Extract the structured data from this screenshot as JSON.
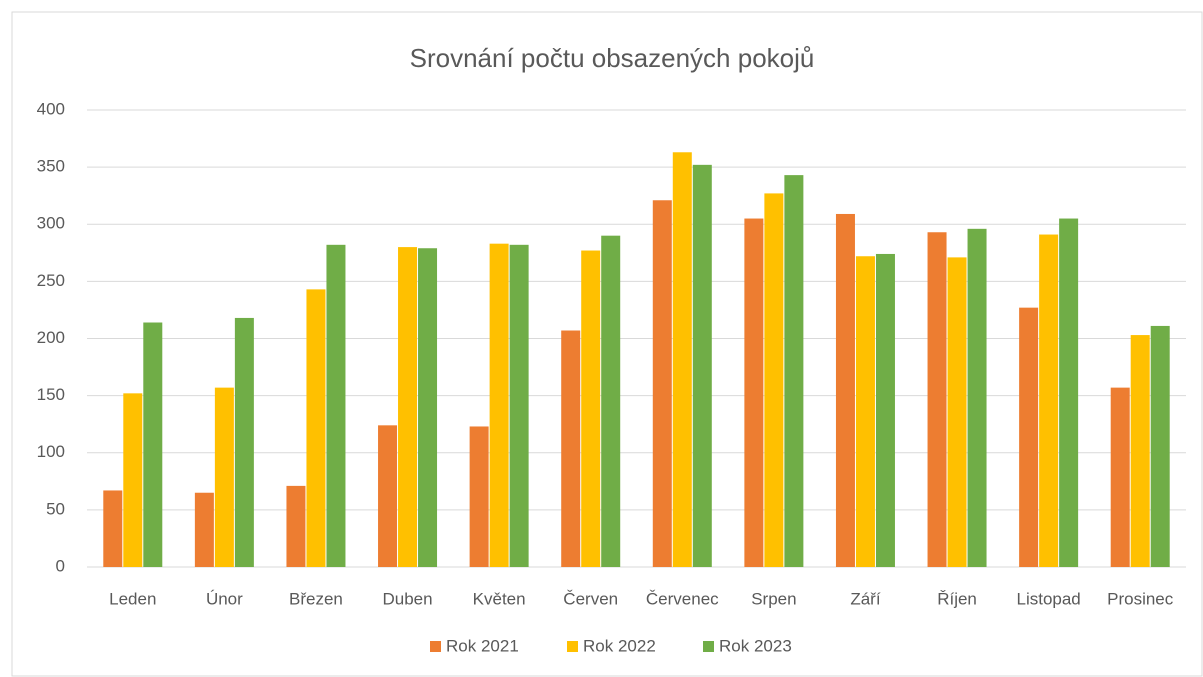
{
  "chart_data": {
    "type": "bar",
    "title": "Srovnání počtu obsazených pokojů",
    "categories": [
      "Leden",
      "Únor",
      "Březen",
      "Duben",
      "Květen",
      "Červen",
      "Červenec",
      "Srpen",
      "Září",
      "Říjen",
      "Listopad",
      "Prosinec"
    ],
    "series": [
      {
        "name": "Rok 2021",
        "color": "#ed7d31",
        "values": [
          67,
          65,
          71,
          124,
          123,
          207,
          321,
          305,
          309,
          293,
          227,
          157
        ]
      },
      {
        "name": "Rok 2022",
        "color": "#ffc000",
        "values": [
          152,
          157,
          243,
          280,
          283,
          277,
          363,
          327,
          272,
          271,
          291,
          203
        ]
      },
      {
        "name": "Rok 2023",
        "color": "#70ad47",
        "values": [
          214,
          218,
          282,
          279,
          282,
          290,
          352,
          343,
          274,
          296,
          305,
          211
        ]
      }
    ],
    "ylim": [
      0,
      400
    ],
    "yticks": [
      0,
      50,
      100,
      150,
      200,
      250,
      300,
      350,
      400
    ],
    "grid": true,
    "legend": "bottom"
  }
}
